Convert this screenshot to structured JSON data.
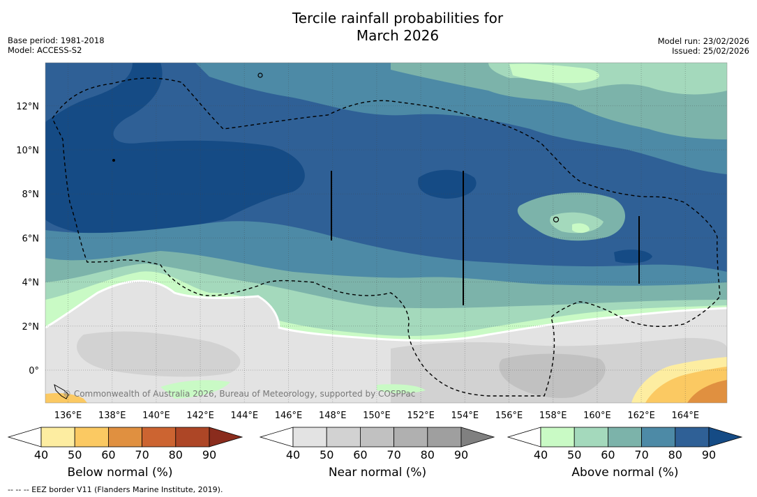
{
  "title_line1": "Tercile rainfall probabilities for",
  "title_line2": "March 2026",
  "meta": {
    "base_period": "Base period: 1981-2018",
    "model": "Model: ACCESS-S2",
    "model_run": "Model run: 23/02/2026",
    "issued": "Issued: 25/02/2026"
  },
  "map": {
    "credit": "© Commonwealth of Australia 2026, Bureau of Meteorology, supported by COSPPac",
    "lon_labels": [
      "136°E",
      "138°E",
      "140°E",
      "142°E",
      "144°E",
      "146°E",
      "148°E",
      "150°E",
      "152°E",
      "154°E",
      "156°E",
      "158°E",
      "160°E",
      "162°E",
      "164°E"
    ],
    "lat_labels": [
      "12°N",
      "10°N",
      "8°N",
      "6°N",
      "4°N",
      "2°N",
      "0°"
    ]
  },
  "colorbars": [
    {
      "label": "Below normal (%)",
      "ticks": [
        "40",
        "50",
        "60",
        "70",
        "80",
        "90"
      ],
      "colors": [
        "#ffffff",
        "#fdeda1",
        "#fbc962",
        "#e09040",
        "#cc6431",
        "#ad4626",
        "#8a2c1d"
      ]
    },
    {
      "label": "Near normal (%)",
      "ticks": [
        "40",
        "50",
        "60",
        "70",
        "80",
        "90"
      ],
      "colors": [
        "#ffffff",
        "#e3e3e3",
        "#d2d2d2",
        "#c1c1c1",
        "#b0b0b0",
        "#9f9f9f",
        "#808080"
      ]
    },
    {
      "label": "Above normal (%)",
      "ticks": [
        "40",
        "50",
        "60",
        "70",
        "80",
        "90"
      ],
      "colors": [
        "#ffffff",
        "#c9fac5",
        "#a4d9bc",
        "#7cb3aa",
        "#4d8aa6",
        "#2f6096",
        "#154b85"
      ]
    }
  ],
  "footnote": "--  --  -- EEZ border V11 (Flanders Marine Institute, 2019)."
}
